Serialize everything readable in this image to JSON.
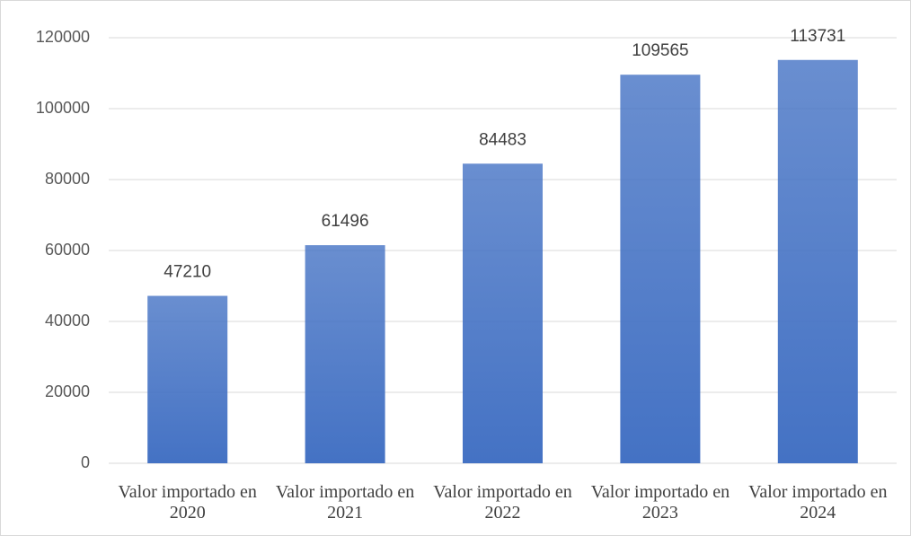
{
  "chart_data": {
    "type": "bar",
    "categories": [
      "Valor importado en 2020",
      "Valor importado en 2021",
      "Valor importado en 2022",
      "Valor importado en 2023",
      "Valor importado en 2024"
    ],
    "values": [
      47210,
      61496,
      84483,
      109565,
      113731
    ],
    "color": "#4472c4",
    "ylim": [
      0,
      120000
    ],
    "yticks": [
      0,
      20000,
      40000,
      60000,
      80000,
      100000,
      120000
    ],
    "grid": true
  }
}
